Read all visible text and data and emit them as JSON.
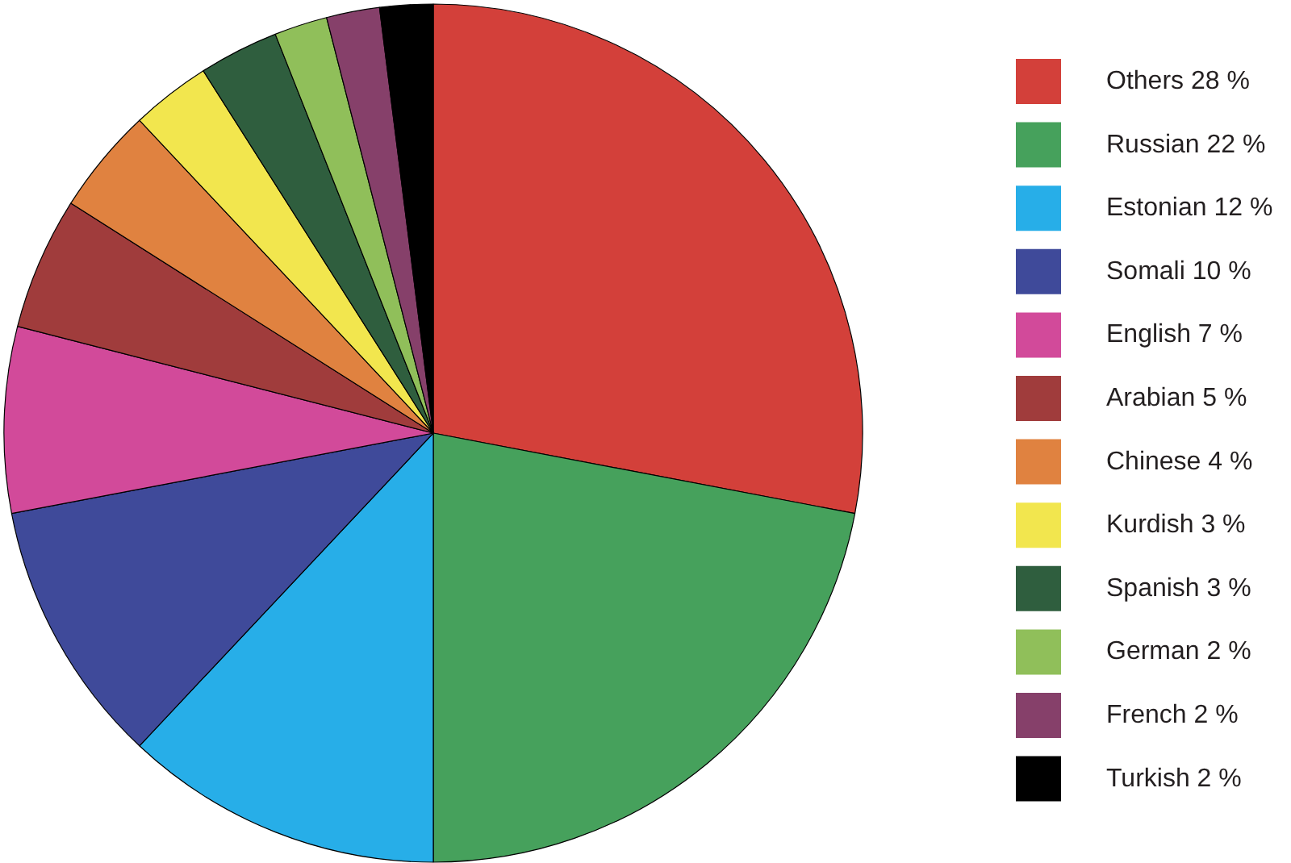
{
  "chart_data": {
    "type": "pie",
    "categories": [
      "Others 28 %",
      "Russian 22 %",
      "Estonian 12 %",
      "Somali 10 %",
      "English 7 %",
      "Arabian 5 %",
      "Chinese 4 %",
      "Kurdish 3 %",
      "Spanish 3 %",
      "German 2 %",
      "French 2 %",
      "Turkish 2 %"
    ],
    "values": [
      28,
      22,
      12,
      10,
      7,
      5,
      4,
      3,
      3,
      2,
      2,
      2
    ],
    "colors": [
      "#d3403a",
      "#46a15c",
      "#27aee8",
      "#3f4a9a",
      "#d24a9a",
      "#a03c3c",
      "#e08240",
      "#f2e64e",
      "#2f5e3e",
      "#90bf5a",
      "#86406a",
      "#000000"
    ],
    "legend": "right"
  }
}
